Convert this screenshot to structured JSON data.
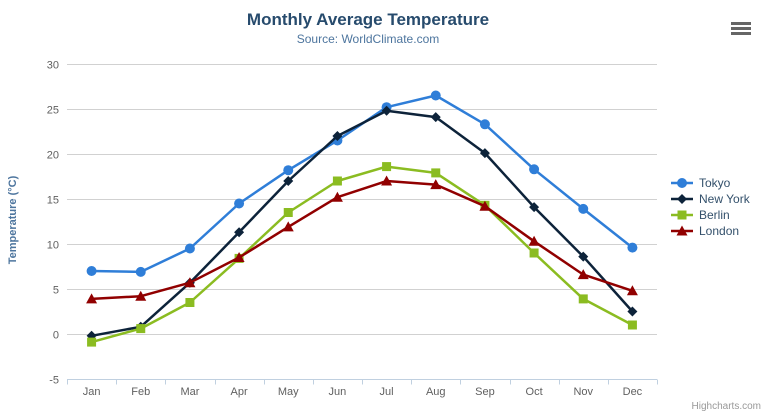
{
  "chart": {
    "title": "Monthly Average Temperature",
    "subtitle": "Source: WorldClimate.com",
    "credits_label": "Highcharts.com",
    "export_menu_icon": "hamburger-menu-icon"
  },
  "chart_data": {
    "type": "line",
    "title": "Monthly Average Temperature",
    "subtitle": "Source: WorldClimate.com",
    "xlabel": "",
    "ylabel": "Temperature (°C)",
    "categories": [
      "Jan",
      "Feb",
      "Mar",
      "Apr",
      "May",
      "Jun",
      "Jul",
      "Aug",
      "Sep",
      "Oct",
      "Nov",
      "Dec"
    ],
    "ylim": [
      -5,
      30
    ],
    "ytick_interval": 5,
    "ytick_labels": [
      "-5",
      "0",
      "5",
      "10",
      "15",
      "20",
      "25",
      "30"
    ],
    "grid": true,
    "legend_position": "right",
    "series": [
      {
        "name": "Tokyo",
        "color": "#2f7ed8",
        "marker": "circle",
        "values": [
          7.0,
          6.9,
          9.5,
          14.5,
          18.2,
          21.5,
          25.2,
          26.5,
          23.3,
          18.3,
          13.9,
          9.6
        ]
      },
      {
        "name": "New York",
        "color": "#0d233a",
        "marker": "diamond",
        "values": [
          -0.2,
          0.8,
          5.7,
          11.3,
          17.0,
          22.0,
          24.8,
          24.1,
          20.1,
          14.1,
          8.6,
          2.5
        ]
      },
      {
        "name": "Berlin",
        "color": "#8bbc21",
        "marker": "square",
        "values": [
          -0.9,
          0.6,
          3.5,
          8.4,
          13.5,
          17.0,
          18.6,
          17.9,
          14.3,
          9.0,
          3.9,
          1.0
        ]
      },
      {
        "name": "London",
        "color": "#910000",
        "marker": "triangle",
        "values": [
          3.9,
          4.2,
          5.7,
          8.5,
          11.9,
          15.2,
          17.0,
          16.6,
          14.2,
          10.3,
          6.6,
          4.8
        ]
      }
    ]
  },
  "style_colors": {
    "gridline": "#d1d1d1",
    "axis_line": "#c0d0e0",
    "axis_label": "#606060",
    "title": "#274b6d",
    "subtitle": "#4d759e",
    "legend_text": "#33506b",
    "credits": "#999999",
    "menu_icon": "#666666"
  }
}
